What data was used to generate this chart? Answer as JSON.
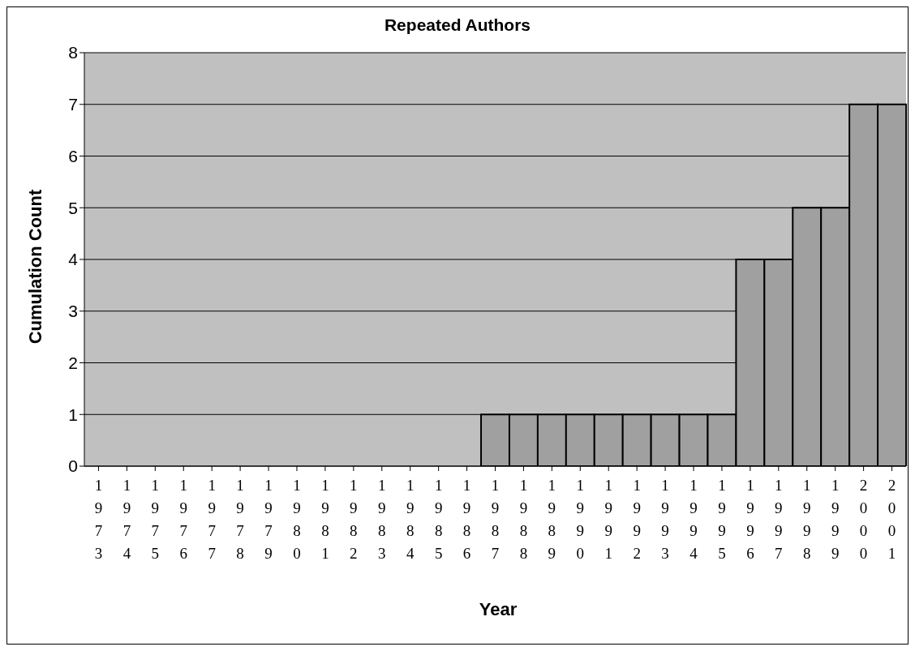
{
  "chart_data": {
    "type": "bar",
    "title": "Repeated Authors",
    "xlabel": "Year",
    "ylabel": "Cumulation Count",
    "categories": [
      "1973",
      "1974",
      "1975",
      "1976",
      "1977",
      "1978",
      "1979",
      "1980",
      "1981",
      "1982",
      "1983",
      "1984",
      "1985",
      "1986",
      "1987",
      "1988",
      "1989",
      "1990",
      "1991",
      "1992",
      "1993",
      "1994",
      "1995",
      "1996",
      "1997",
      "1998",
      "1999",
      "2000",
      "2001"
    ],
    "values": [
      0,
      0,
      0,
      0,
      0,
      0,
      0,
      0,
      0,
      0,
      0,
      0,
      0,
      0,
      1,
      1,
      1,
      1,
      1,
      1,
      1,
      1,
      1,
      4,
      4,
      5,
      5,
      7,
      7
    ],
    "color": "#a0a0a0",
    "ylim": [
      0,
      8
    ],
    "yticks": [
      0,
      1,
      2,
      3,
      4,
      5,
      6,
      7,
      8
    ],
    "grid": "y"
  }
}
